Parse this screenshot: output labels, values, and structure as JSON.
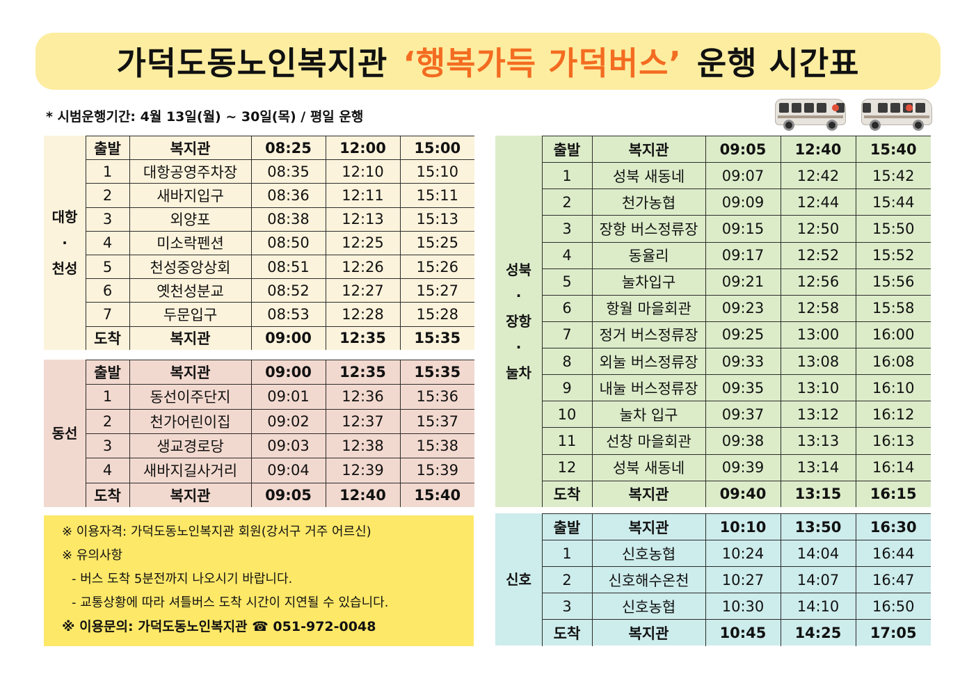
{
  "title": {
    "part1": "가덕도동노인복지관",
    "part2": "‘행복가득 가덕버스’",
    "part3": "운행 시간표"
  },
  "period": "* 시범운행기간: 4월 13일(월) ~ 30일(목) / 평일 운행",
  "routes": {
    "daehang": {
      "label": [
        "대항",
        "·",
        "천성"
      ],
      "rows": [
        [
          "출발",
          "복지관",
          "08:25",
          "12:00",
          "15:00"
        ],
        [
          "1",
          "대항공영주차장",
          "08:35",
          "12:10",
          "15:10"
        ],
        [
          "2",
          "새바지입구",
          "08:36",
          "12:11",
          "15:11"
        ],
        [
          "3",
          "외양포",
          "08:38",
          "12:13",
          "15:13"
        ],
        [
          "4",
          "미소락펜션",
          "08:50",
          "12:25",
          "15:25"
        ],
        [
          "5",
          "천성중앙상회",
          "08:51",
          "12:26",
          "15:26"
        ],
        [
          "6",
          "옛천성분교",
          "08:52",
          "12:27",
          "15:27"
        ],
        [
          "7",
          "두문입구",
          "08:53",
          "12:28",
          "15:28"
        ],
        [
          "도착",
          "복지관",
          "09:00",
          "12:35",
          "15:35"
        ]
      ]
    },
    "dongseon": {
      "label": [
        "동선"
      ],
      "rows": [
        [
          "출발",
          "복지관",
          "09:00",
          "12:35",
          "15:35"
        ],
        [
          "1",
          "동선이주단지",
          "09:01",
          "12:36",
          "15:36"
        ],
        [
          "2",
          "천가어린이집",
          "09:02",
          "12:37",
          "15:37"
        ],
        [
          "3",
          "생교경로당",
          "09:03",
          "12:38",
          "15:38"
        ],
        [
          "4",
          "새바지길사거리",
          "09:04",
          "12:39",
          "15:39"
        ],
        [
          "도착",
          "복지관",
          "09:05",
          "12:40",
          "15:40"
        ]
      ]
    },
    "seongbuk": {
      "label": [
        "성북",
        "·",
        "장항",
        "·",
        "눌차"
      ],
      "rows": [
        [
          "출발",
          "복지관",
          "09:05",
          "12:40",
          "15:40"
        ],
        [
          "1",
          "성북 새동네",
          "09:07",
          "12:42",
          "15:42"
        ],
        [
          "2",
          "천가농협",
          "09:09",
          "12:44",
          "15:44"
        ],
        [
          "3",
          "장항 버스정류장",
          "09:15",
          "12:50",
          "15:50"
        ],
        [
          "4",
          "동율리",
          "09:17",
          "12:52",
          "15:52"
        ],
        [
          "5",
          "눌차입구",
          "09:21",
          "12:56",
          "15:56"
        ],
        [
          "6",
          "항월 마을회관",
          "09:23",
          "12:58",
          "15:58"
        ],
        [
          "7",
          "정거 버스정류장",
          "09:25",
          "13:00",
          "16:00"
        ],
        [
          "8",
          "외눌 버스정류장",
          "09:33",
          "13:08",
          "16:08"
        ],
        [
          "9",
          "내눌 버스정류장",
          "09:35",
          "13:10",
          "16:10"
        ],
        [
          "10",
          "눌차 입구",
          "09:37",
          "13:12",
          "16:12"
        ],
        [
          "11",
          "선창 마을회관",
          "09:38",
          "13:13",
          "16:13"
        ],
        [
          "12",
          "성북 새동네",
          "09:39",
          "13:14",
          "16:14"
        ],
        [
          "도착",
          "복지관",
          "09:40",
          "13:15",
          "16:15"
        ]
      ]
    },
    "sinho": {
      "label": [
        "신호"
      ],
      "rows": [
        [
          "출발",
          "복지관",
          "10:10",
          "13:50",
          "16:30"
        ],
        [
          "1",
          "신호농협",
          "10:24",
          "14:04",
          "16:44"
        ],
        [
          "2",
          "신호해수온천",
          "10:27",
          "14:07",
          "16:47"
        ],
        [
          "3",
          "신호농협",
          "10:30",
          "14:10",
          "16:50"
        ],
        [
          "도착",
          "복지관",
          "10:45",
          "14:25",
          "17:05"
        ]
      ]
    }
  },
  "notes": [
    "※ 이용자격: 가덕도동노인복지관 회원(강서구 거주 어르신)",
    "※ 유의사항",
    "  - 버스 도착 5분전까지 나오시기 바랍니다.",
    "  - 교통상황에 따라 셔틀버스 도착 시간이 지연될 수 있습니다.",
    "※ 이용문의: 가덕도동노인복지관 ☎ 051-972-0048"
  ],
  "colors": {
    "banner_bg": "#fdeda0",
    "title_highlight": "#f36c21",
    "daehang": "#fcf3dc",
    "dongseon": "#f2d9cf",
    "seongbuk": "#dcecc9",
    "sinho": "#cdecec",
    "notes_bg": "#fde868"
  },
  "icons": [
    "bus-icon",
    "bus-icon"
  ]
}
